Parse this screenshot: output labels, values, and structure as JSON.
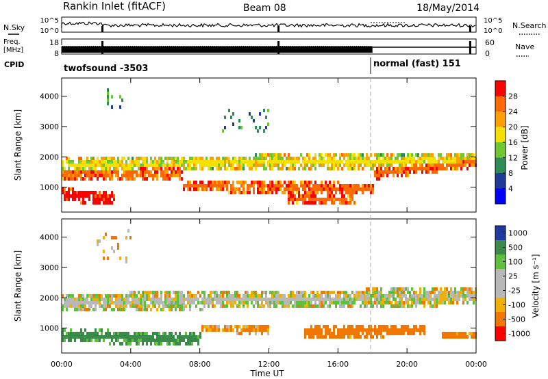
{
  "header": {
    "station": "Rankin Inlet (fitACF)",
    "beam": "Beam 08",
    "date": "18/May/2014"
  },
  "status_panel": {
    "nsky_label": "N.Sky",
    "nsearch_label": "N.Search",
    "freq_label_line1": "Freq.",
    "freq_label_line2": "[MHz]",
    "nave_label": "Nave",
    "cpid_label": "CPID",
    "noise_ticks_left": [
      "10^5",
      "10^0"
    ],
    "noise_ticks_right": [
      "10^5",
      "10^0"
    ],
    "freq_ticks": [
      "18",
      "8"
    ],
    "nave_ticks": [
      "60",
      "0"
    ],
    "cpid_segments": [
      {
        "label": "twofsound  -3503",
        "start_hour": 0,
        "end_hour": 18
      },
      {
        "label": "normal (fast) 151",
        "start_hour": 18,
        "end_hour": 24
      }
    ],
    "gap_hours": [
      2.3,
      12.5,
      23.6
    ]
  },
  "axes": {
    "ylabel": "Slant Range [km]",
    "xlabel": "Time UT",
    "x_ticks": [
      "00:00",
      "04:00",
      "08:00",
      "12:00",
      "16:00",
      "20:00",
      "00:00"
    ],
    "y_ticks": [
      "4000",
      "3000",
      "2000",
      "1000"
    ]
  },
  "colorbars": {
    "power": {
      "label": "Power [dB]",
      "ticks": [
        "28",
        "24",
        "20",
        "16",
        "12",
        "8",
        "4"
      ],
      "colors": [
        "#ff0000",
        "#ff6a00",
        "#ffa000",
        "#f5e000",
        "#6ec832",
        "#2e8b57",
        "#1e3a9a",
        "#0000ff"
      ]
    },
    "velocity": {
      "label": "Velocity [m s⁻¹]",
      "ticks": [
        "1000",
        "500",
        "100",
        "25",
        "-25",
        "-100",
        "-500",
        "-1000"
      ],
      "colors": [
        "#1e3aa0",
        "#3a8a4a",
        "#5fc040",
        "#b8b8b8",
        "#b8b8b8",
        "#f0b000",
        "#f07800",
        "#ff0000"
      ]
    }
  },
  "chart_data": [
    {
      "type": "heatmap",
      "name": "power",
      "xlabel": "Time UT",
      "ylabel": "Slant Range [km]",
      "colorbar_label": "Power [dB]",
      "xlim": [
        0,
        24
      ],
      "ylim": [
        180,
        4600
      ],
      "bands": [
        {
          "t": [
            0,
            24
          ],
          "range_center": [
            1800,
            1950
          ],
          "width": 500,
          "value": 16
        },
        {
          "t": [
            0,
            7
          ],
          "range_center": [
            1500,
            1500
          ],
          "width": 500,
          "value": 24
        },
        {
          "t": [
            0,
            3
          ],
          "range_center": [
            800,
            700
          ],
          "width": 450,
          "value": 28
        },
        {
          "t": [
            7,
            18
          ],
          "range_center": [
            1100,
            1000
          ],
          "width": 400,
          "value": 24
        },
        {
          "t": [
            13,
            17
          ],
          "range_center": [
            700,
            600
          ],
          "width": 350,
          "value": 24
        },
        {
          "t": [
            18,
            24
          ],
          "range_center": [
            1500,
            1900
          ],
          "width": 400,
          "value": 24
        }
      ],
      "sporadic": [
        {
          "t": [
            2.5,
            3.5
          ],
          "range": [
            3600,
            4300
          ],
          "value": 8
        },
        {
          "t": [
            9,
            12
          ],
          "range": [
            2800,
            3600
          ],
          "value": 8
        }
      ]
    },
    {
      "type": "heatmap",
      "name": "velocity",
      "xlabel": "Time UT",
      "ylabel": "Slant Range [km]",
      "colorbar_label": "Velocity [m s⁻¹]",
      "xlim": [
        0,
        24
      ],
      "ylim": [
        180,
        4600
      ],
      "bands": [
        {
          "t": [
            0,
            24
          ],
          "range_center": [
            1900,
            2100
          ],
          "width": 600,
          "value": 0
        },
        {
          "t": [
            0,
            8
          ],
          "range_center": [
            800,
            700
          ],
          "width": 450,
          "value": 400
        },
        {
          "t": [
            8,
            12
          ],
          "range_center": [
            1050,
            1000
          ],
          "width": 300,
          "value": -150
        },
        {
          "t": [
            14,
            21
          ],
          "range_center": [
            900,
            1000
          ],
          "width": 400,
          "value": -400
        },
        {
          "t": [
            22,
            24
          ],
          "range_center": [
            800,
            800
          ],
          "width": 250,
          "value": -300
        }
      ],
      "sporadic": [
        {
          "t": [
            2,
            4
          ],
          "range": [
            3200,
            4300
          ],
          "value": -100
        }
      ]
    }
  ]
}
